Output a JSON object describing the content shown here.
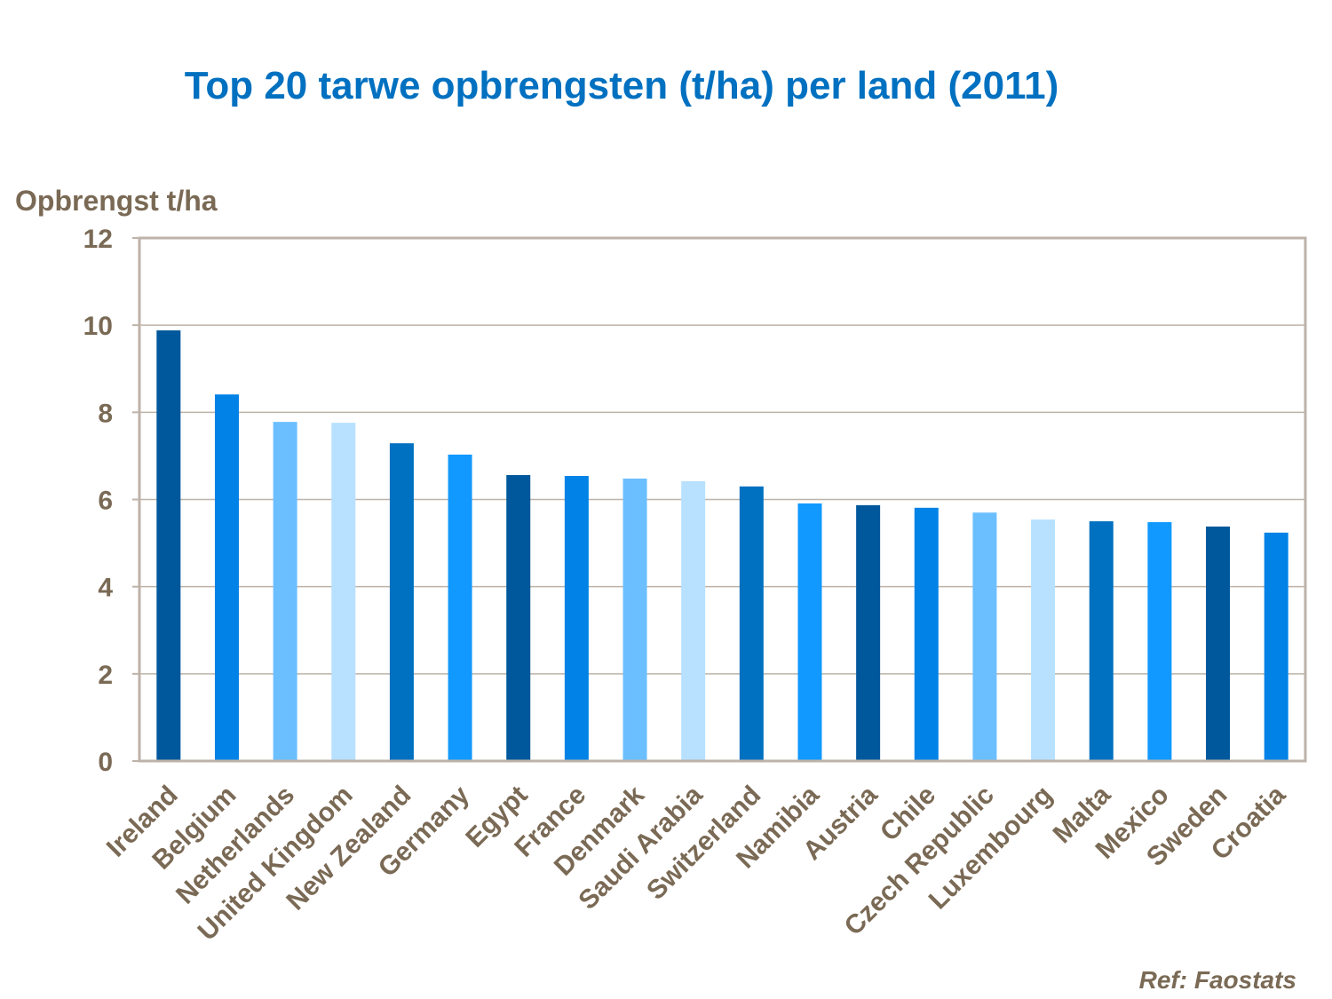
{
  "chart_data": {
    "type": "bar",
    "title": "Top 20 tarwe opbrengsten (t/ha) per land (2011)",
    "ylabel": "Opbrengst t/ha",
    "xlabel": "",
    "ylim": [
      0,
      12
    ],
    "yticks": [
      0,
      2,
      4,
      6,
      8,
      10,
      12
    ],
    "grid": true,
    "categories": [
      "Ireland",
      "Belgium",
      "Netherlands",
      "United Kingdom",
      "New Zealand",
      "Germany",
      "Egypt",
      "France",
      "Denmark",
      "Saudi Arabia",
      "Switzerland",
      "Namibia",
      "Austria",
      "Chile",
      "Czech Republic",
      "Luxembourg",
      "Malta",
      "Mexico",
      "Sweden",
      "Croatia"
    ],
    "values": [
      9.88,
      8.41,
      7.78,
      7.76,
      7.29,
      7.03,
      6.56,
      6.54,
      6.48,
      6.42,
      6.3,
      5.91,
      5.87,
      5.81,
      5.7,
      5.54,
      5.5,
      5.48,
      5.38,
      5.24
    ],
    "bar_colors": [
      "#00589C",
      "#0082E6",
      "#6BBFFF",
      "#B8E0FF",
      "#0070C0",
      "#1199FF"
    ],
    "annotation": "Ref: Faostats"
  }
}
